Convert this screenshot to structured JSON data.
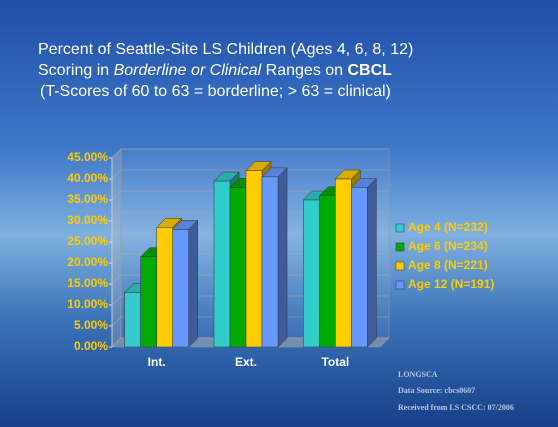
{
  "chart_data": {
    "type": "bar3d",
    "title": "Percent of Seattle-Site LS Children (Ages 4, 6, 8, 12)",
    "subtitle_parts": [
      "Scoring in ",
      "Borderline or Clinical",
      " Ranges on ",
      "CBCL"
    ],
    "note": "(T-Scores of 60 to 63 = borderline;  > 63 = clinical)",
    "categories": [
      "Int.",
      "Ext.",
      "Total"
    ],
    "series": [
      {
        "name": "Age 4 (N=232)",
        "color": "#33cccc",
        "values": [
          13,
          39.5,
          35
        ]
      },
      {
        "name": "Age 6 (N=234)",
        "color": "#00aa00",
        "values": [
          21.5,
          38,
          36
        ]
      },
      {
        "name": "Age 8 (N=221)",
        "color": "#ffcc00",
        "values": [
          28.5,
          42,
          40
        ]
      },
      {
        "name": "Age 12 (N=191)",
        "color": "#6699ff",
        "values": [
          28,
          40.5,
          38
        ]
      }
    ],
    "ylim": [
      0,
      45
    ],
    "yticks": [
      {
        "value": 0,
        "label": "0.00%"
      },
      {
        "value": 5,
        "label": "5.00%"
      },
      {
        "value": 10,
        "label": "10.00%"
      },
      {
        "value": 15,
        "label": "15.00%"
      },
      {
        "value": 20,
        "label": "20.00%"
      },
      {
        "value": 25,
        "label": "25.00%"
      },
      {
        "value": 30,
        "label": "30.00%"
      },
      {
        "value": 35,
        "label": "35.00%"
      },
      {
        "value": 40,
        "label": "40.00%"
      },
      {
        "value": 45,
        "label": "45.00%"
      }
    ],
    "grid": true,
    "legend": "right",
    "footer": [
      "LONGSCA",
      "Data Source:  cbcs0607",
      "Received from LS CSCC:  07/2006"
    ]
  }
}
